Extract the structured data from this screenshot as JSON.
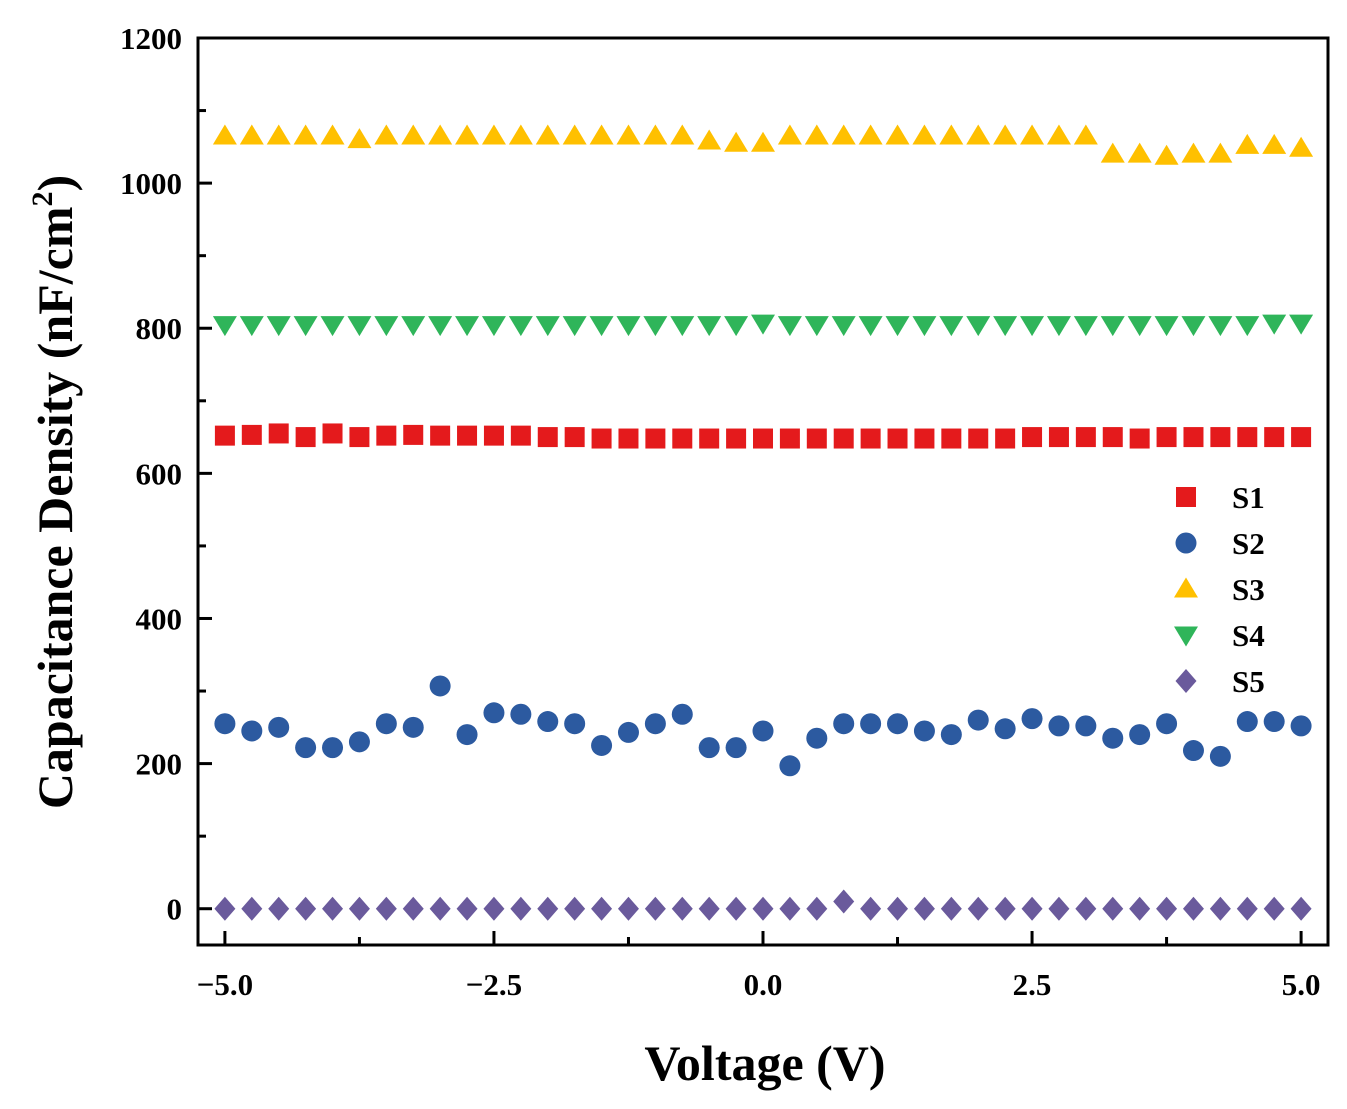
{
  "chart_data": {
    "type": "scatter",
    "title": "",
    "xlabel": "Voltage (V)",
    "ylabel": {
      "main": "Capacitance Density (nF/cm",
      "superscript": "2",
      "close": ")"
    },
    "xlim": [
      -5.25,
      5.25
    ],
    "ylim": [
      -50,
      1200
    ],
    "xticks": [
      -5.0,
      -2.5,
      0.0,
      2.5,
      5.0
    ],
    "xtick_labels": [
      "−5.0",
      "−2.5",
      "0.0",
      "2.5",
      "5.0"
    ],
    "yticks": [
      0,
      200,
      400,
      600,
      800,
      1000,
      1200
    ],
    "ytick_labels": [
      "0",
      "200",
      "400",
      "600",
      "800",
      "1000",
      "1200"
    ],
    "legend_position": "right",
    "x": [
      -5.0,
      -4.75,
      -4.5,
      -4.25,
      -4.0,
      -3.75,
      -3.5,
      -3.25,
      -3.0,
      -2.75,
      -2.5,
      -2.25,
      -2.0,
      -1.75,
      -1.5,
      -1.25,
      -1.0,
      -0.75,
      -0.5,
      -0.25,
      0.0,
      0.25,
      0.5,
      0.75,
      1.0,
      1.25,
      1.5,
      1.75,
      2.0,
      2.25,
      2.5,
      2.75,
      3.0,
      3.25,
      3.5,
      3.75,
      4.0,
      4.25,
      4.5,
      4.75,
      5.0
    ],
    "series": [
      {
        "name": "S1",
        "marker": "square",
        "color": "#e41a1c",
        "values": [
          652,
          653,
          655,
          650,
          655,
          650,
          652,
          653,
          652,
          652,
          652,
          652,
          650,
          650,
          648,
          648,
          648,
          648,
          648,
          648,
          648,
          648,
          648,
          648,
          648,
          648,
          648,
          648,
          648,
          648,
          650,
          650,
          650,
          650,
          648,
          650,
          650,
          650,
          650,
          650,
          650
        ]
      },
      {
        "name": "S2",
        "marker": "circle",
        "color": "#2c5aa0",
        "values": [
          255,
          245,
          250,
          222,
          222,
          230,
          255,
          250,
          307,
          240,
          270,
          268,
          258,
          255,
          225,
          243,
          255,
          268,
          222,
          222,
          245,
          197,
          235,
          255,
          255,
          255,
          245,
          240,
          260,
          248,
          262,
          252,
          252,
          235,
          240,
          255,
          218,
          210,
          258,
          258,
          252
        ]
      },
      {
        "name": "S3",
        "marker": "triangle-up",
        "color": "#ffc000",
        "values": [
          1065,
          1065,
          1065,
          1065,
          1065,
          1060,
          1065,
          1065,
          1065,
          1065,
          1065,
          1065,
          1065,
          1065,
          1065,
          1065,
          1065,
          1065,
          1058,
          1055,
          1055,
          1065,
          1065,
          1065,
          1065,
          1065,
          1065,
          1065,
          1065,
          1065,
          1065,
          1065,
          1065,
          1040,
          1040,
          1037,
          1040,
          1040,
          1052,
          1052,
          1048
        ]
      },
      {
        "name": "S4",
        "marker": "triangle-down",
        "color": "#2fb55a",
        "values": [
          805,
          805,
          805,
          805,
          805,
          805,
          805,
          805,
          805,
          805,
          805,
          805,
          805,
          805,
          805,
          805,
          805,
          805,
          805,
          805,
          807,
          805,
          805,
          805,
          805,
          805,
          805,
          805,
          805,
          805,
          805,
          805,
          805,
          805,
          805,
          805,
          805,
          805,
          805,
          807,
          807
        ]
      },
      {
        "name": "S5",
        "marker": "diamond",
        "color": "#6a5a9c",
        "values": [
          0,
          0,
          0,
          0,
          0,
          0,
          0,
          0,
          0,
          0,
          0,
          0,
          0,
          0,
          0,
          0,
          0,
          0,
          0,
          0,
          0,
          0,
          0,
          10,
          0,
          0,
          0,
          0,
          0,
          0,
          0,
          0,
          0,
          0,
          0,
          0,
          0,
          0,
          0,
          0,
          0
        ]
      }
    ]
  }
}
